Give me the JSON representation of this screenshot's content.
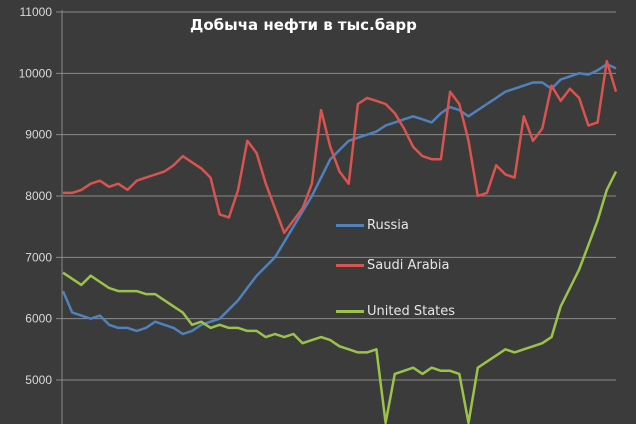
{
  "title": "Добыча нефти в тыс.барр",
  "colors": {
    "background": "#3b3b3b",
    "grid": "#8a8a8a",
    "russia": "#4f81bd",
    "saudi_arabia": "#d9534f",
    "united_states": "#9bc34a"
  },
  "legend": [
    {
      "label": "Russia",
      "color": "#4f81bd"
    },
    {
      "label": "Saudi Arabia",
      "color": "#d9534f"
    },
    {
      "label": "United States",
      "color": "#9bc34a"
    }
  ],
  "chart_data": {
    "type": "line",
    "title": "Добыча нефти в тыс.барр",
    "xlabel": "",
    "ylabel": "",
    "ylim": [
      4300,
      11000
    ],
    "yticks": [
      5000,
      6000,
      7000,
      8000,
      9000,
      10000,
      11000
    ],
    "grid": true,
    "legend_position": "inside center-right",
    "x": [
      0,
      1,
      2,
      3,
      4,
      5,
      6,
      7,
      8,
      9,
      10,
      11,
      12,
      13,
      14,
      15,
      16,
      17,
      18,
      19,
      20,
      21,
      22,
      23,
      24,
      25,
      26,
      27,
      28,
      29,
      30,
      31,
      32,
      33,
      34,
      35,
      36,
      37,
      38,
      39,
      40,
      41,
      42,
      43,
      44,
      45,
      46,
      47,
      48,
      49,
      50,
      51,
      52,
      53,
      54,
      55,
      56,
      57,
      58,
      59,
      60
    ],
    "series": [
      {
        "name": "Russia",
        "values": [
          6450,
          6100,
          6050,
          6000,
          6050,
          5900,
          5850,
          5850,
          5800,
          5850,
          5950,
          5900,
          5850,
          5750,
          5800,
          5900,
          5950,
          6000,
          6150,
          6300,
          6500,
          6700,
          6850,
          7000,
          7250,
          7500,
          7750,
          8000,
          8300,
          8600,
          8750,
          8900,
          8950,
          9000,
          9050,
          9150,
          9200,
          9250,
          9300,
          9250,
          9200,
          9350,
          9450,
          9400,
          9300,
          9400,
          9500,
          9600,
          9700,
          9750,
          9800,
          9850,
          9850,
          9750,
          9900,
          9950,
          10000,
          9980,
          10050,
          10150,
          10080
        ]
      },
      {
        "name": "Saudi Arabia",
        "values": [
          8050,
          8050,
          8100,
          8200,
          8250,
          8150,
          8200,
          8100,
          8250,
          8300,
          8350,
          8400,
          8500,
          8650,
          8550,
          8450,
          8300,
          7700,
          7650,
          8100,
          8900,
          8700,
          8200,
          7800,
          7400,
          7600,
          7800,
          8200,
          9400,
          8800,
          8400,
          8200,
          9500,
          9600,
          9550,
          9500,
          9350,
          9100,
          8800,
          8650,
          8600,
          8600,
          9700,
          9500,
          8900,
          8000,
          8050,
          8500,
          8350,
          8300,
          9300,
          8900,
          9100,
          9800,
          9550,
          9750,
          9600,
          9150,
          9200,
          10200,
          9700
        ]
      },
      {
        "name": "United States",
        "values": [
          6750,
          6650,
          6550,
          6700,
          6600,
          6500,
          6450,
          6450,
          6450,
          6400,
          6400,
          6300,
          6200,
          6100,
          5900,
          5950,
          5850,
          5900,
          5850,
          5850,
          5800,
          5800,
          5700,
          5750,
          5700,
          5750,
          5600,
          5650,
          5700,
          5650,
          5550,
          5500,
          5450,
          5450,
          5500,
          4300,
          5100,
          5150,
          5200,
          5100,
          5200,
          5150,
          5150,
          5100,
          4300,
          5200,
          5300,
          5400,
          5500,
          5450,
          5500,
          5550,
          5600,
          5700,
          6200,
          6500,
          6800,
          7200,
          7600,
          8100,
          8400
        ]
      }
    ]
  },
  "axis": {
    "yticks": [
      "11000",
      "10000",
      "9000",
      "8000",
      "7000",
      "6000",
      "5000"
    ]
  }
}
